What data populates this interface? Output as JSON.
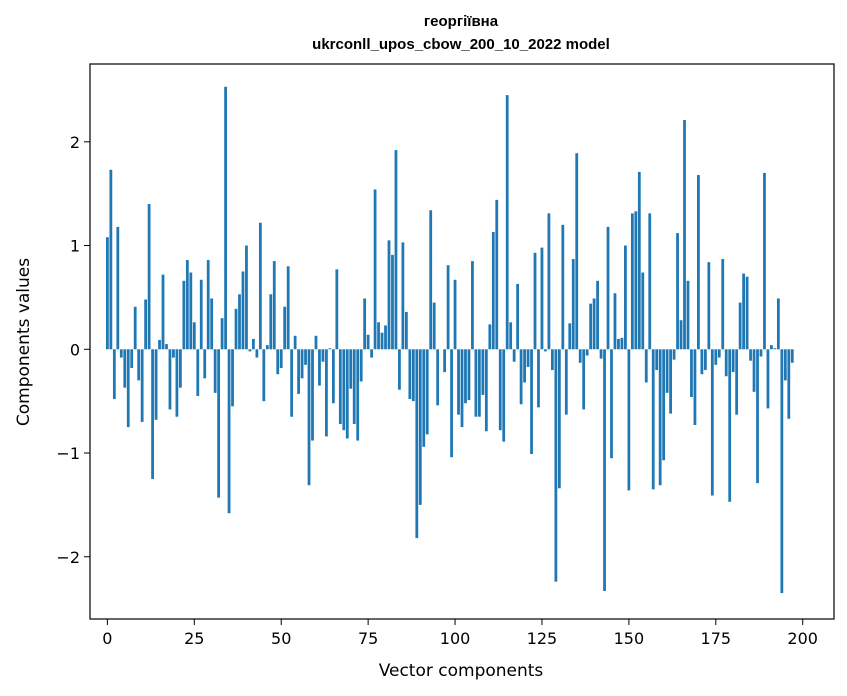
{
  "chart_data": {
    "type": "bar",
    "title": "георгіївна",
    "subtitle": "ukrconll_upos_cbow_200_10_2022 model",
    "xlabel": "Vector components",
    "ylabel": "Components values",
    "xlim": [
      -5,
      209
    ],
    "ylim": [
      -2.6,
      2.75
    ],
    "xticks": [
      0,
      25,
      50,
      75,
      100,
      125,
      150,
      175,
      200
    ],
    "yticks": [
      -2,
      -1,
      0,
      1,
      2
    ],
    "xtick_labels": [
      "0",
      "25",
      "50",
      "75",
      "100",
      "125",
      "150",
      "175",
      "200"
    ],
    "ytick_labels": [
      "−2",
      "−1",
      "0",
      "1",
      "2"
    ],
    "grid": false,
    "bar_color": "#1f77b4",
    "values": [
      1.08,
      1.73,
      -0.48,
      1.18,
      -0.08,
      -0.37,
      -0.75,
      -0.18,
      0.41,
      -0.3,
      -0.7,
      0.48,
      1.4,
      -1.25,
      -0.68,
      0.09,
      0.72,
      0.05,
      -0.58,
      -0.08,
      -0.65,
      -0.37,
      0.66,
      0.86,
      0.74,
      0.26,
      -0.45,
      0.67,
      -0.28,
      0.86,
      0.49,
      -0.42,
      -1.43,
      0.3,
      2.53,
      -1.58,
      -0.55,
      0.39,
      0.53,
      0.75,
      1.0,
      -0.02,
      0.1,
      -0.08,
      1.22,
      -0.5,
      0.04,
      0.53,
      0.85,
      -0.24,
      -0.18,
      0.41,
      0.8,
      -0.65,
      0.13,
      -0.43,
      -0.28,
      -0.15,
      -1.31,
      -0.88,
      0.13,
      -0.35,
      -0.12,
      -0.84,
      0.01,
      -0.52,
      0.77,
      -0.72,
      -0.78,
      -0.86,
      -0.38,
      -0.72,
      -0.88,
      -0.31,
      0.49,
      0.14,
      -0.08,
      1.54,
      0.26,
      0.16,
      0.23,
      1.05,
      0.91,
      1.92,
      -0.39,
      1.03,
      0.36,
      -0.48,
      -0.5,
      -1.82,
      -1.5,
      -0.94,
      -0.82,
      1.34,
      0.45,
      -0.54,
      0.0,
      -0.22,
      0.81,
      -1.04,
      0.67,
      -0.63,
      -0.75,
      -0.52,
      -0.49,
      0.85,
      -0.65,
      -0.65,
      -0.44,
      -0.79,
      0.24,
      1.13,
      1.44,
      -0.78,
      -0.89,
      2.45,
      0.26,
      -0.12,
      0.63,
      -0.53,
      -0.32,
      -0.17,
      -1.01,
      0.93,
      -0.56,
      0.98,
      -0.02,
      1.31,
      -0.2,
      -2.24,
      -1.34,
      1.2,
      -0.63,
      0.25,
      0.87,
      1.89,
      -0.13,
      -0.58,
      -0.06,
      0.44,
      0.49,
      0.66,
      -0.09,
      -2.33,
      1.18,
      -1.05,
      0.54,
      0.1,
      0.11,
      1.0,
      -1.36,
      1.31,
      1.33,
      1.71,
      0.74,
      -0.32,
      1.31,
      -1.35,
      -0.2,
      -1.31,
      -1.07,
      -0.42,
      -0.62,
      -0.1,
      1.12,
      0.28,
      2.21,
      0.66,
      -0.46,
      -0.73,
      1.68,
      -0.24,
      -0.2,
      0.84,
      -1.41,
      -0.15,
      -0.08,
      0.87,
      -0.26,
      -1.47,
      -0.22,
      -0.63,
      0.45,
      0.73,
      0.7,
      -0.11,
      -0.41,
      -1.29,
      -0.07,
      1.7,
      -0.57,
      0.04,
      0.01,
      0.49,
      -2.35,
      -0.3,
      -0.67,
      -0.13
    ]
  }
}
